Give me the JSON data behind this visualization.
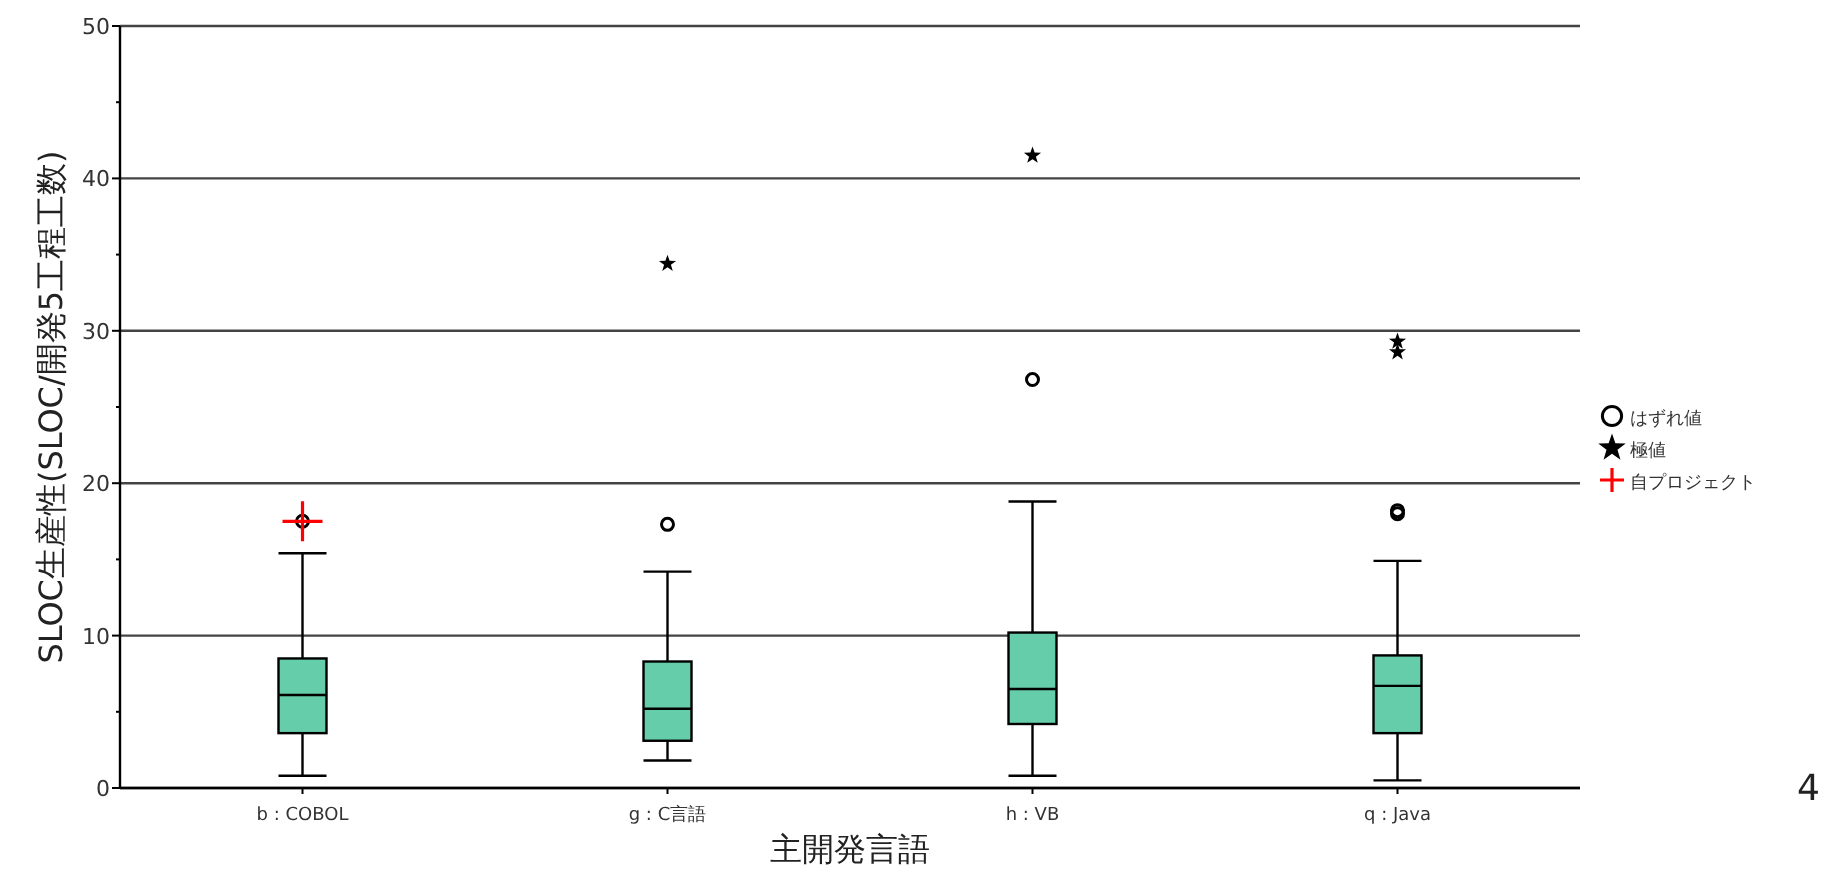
{
  "chart_data": {
    "type": "box",
    "xlabel": "主開発言語",
    "ylabel": "SLOC生産性(SLOC/開発5工程工数)",
    "categories": [
      "b : COBOL",
      "g : C言語",
      "h : VB",
      "q : Java"
    ],
    "color": "#66cdaa",
    "boxes": [
      {
        "low": 0.8,
        "q1": 3.6,
        "median": 6.1,
        "q3": 8.5,
        "high": 15.4
      },
      {
        "low": 1.8,
        "q1": 3.1,
        "median": 5.2,
        "q3": 8.3,
        "high": 14.2
      },
      {
        "low": 0.8,
        "q1": 4.2,
        "median": 6.5,
        "q3": 10.2,
        "high": 18.8
      },
      {
        "low": 0.5,
        "q1": 3.6,
        "median": 6.7,
        "q3": 8.7,
        "high": 14.9
      }
    ],
    "series": [
      {
        "name": "はずれ値",
        "type": "scatter",
        "marker": "circle",
        "color": "#000000",
        "x": [
          "b : COBOL",
          "g : C言語",
          "h : VB",
          "q : Java",
          "q : Java"
        ],
        "values": [
          17.5,
          17.3,
          26.8,
          18.0,
          18.2
        ]
      },
      {
        "name": "極値",
        "type": "scatter",
        "marker": "star",
        "color": "#000000",
        "x": [
          "g : C言語",
          "h : VB",
          "q : Java",
          "q : Java"
        ],
        "values": [
          34.4,
          41.5,
          28.6,
          29.3
        ]
      },
      {
        "name": "自プロジェクト",
        "type": "scatter",
        "marker": "cross",
        "color": "#ff0000",
        "x": [
          "b : COBOL"
        ],
        "values": [
          17.5
        ]
      }
    ],
    "ylim": [
      0,
      50
    ],
    "yticks": [
      0,
      10,
      20,
      30,
      40,
      50
    ],
    "grid": "y",
    "legend": "right",
    "annotations": [
      "4"
    ]
  }
}
